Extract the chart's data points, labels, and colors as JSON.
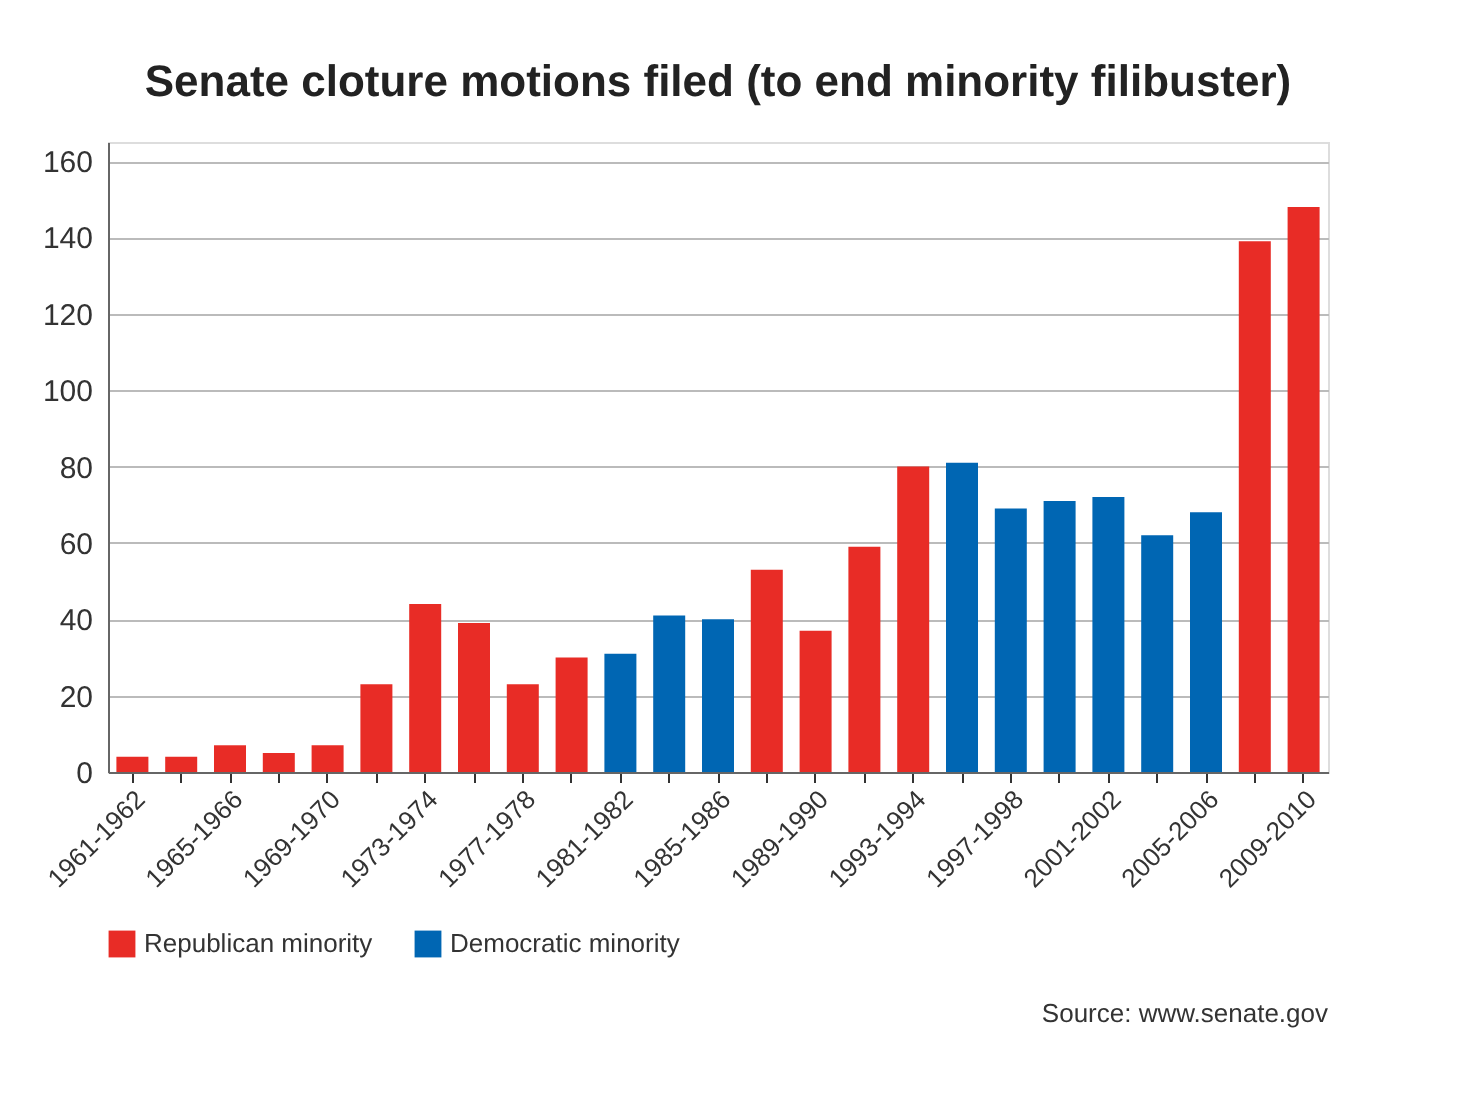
{
  "chart_data": {
    "type": "bar",
    "title": "Senate cloture motions filed (to end minority filibuster)",
    "categories": [
      "1961-1962",
      null,
      "1965-1966",
      null,
      "1969-1970",
      null,
      "1973-1974",
      null,
      "1977-1978",
      null,
      "1981-1982",
      null,
      "1985-1986",
      null,
      "1989-1990",
      null,
      "1993-1994",
      null,
      "1997-1998",
      null,
      "2001-2002",
      null,
      "2005-2006",
      null,
      "2009-2010"
    ],
    "series": [
      {
        "name": "Republican minority",
        "color": "#e82c26",
        "values": [
          4,
          4,
          7,
          5,
          7,
          23,
          44,
          39,
          23,
          30,
          null,
          null,
          null,
          53,
          37,
          59,
          80,
          null,
          null,
          null,
          null,
          null,
          null,
          139,
          148
        ]
      },
      {
        "name": "Democratic minority",
        "color": "#0066b3",
        "values": [
          null,
          null,
          null,
          null,
          null,
          null,
          null,
          null,
          null,
          null,
          31,
          41,
          40,
          null,
          null,
          null,
          null,
          81,
          69,
          71,
          72,
          62,
          68,
          null,
          null
        ]
      }
    ],
    "ylim": [
      0,
      165
    ],
    "yticks": [
      0,
      20,
      40,
      60,
      80,
      100,
      120,
      140,
      160
    ],
    "grid": "y",
    "legend": "bottom left",
    "annotations": [
      "Source: www.senate.gov"
    ]
  }
}
